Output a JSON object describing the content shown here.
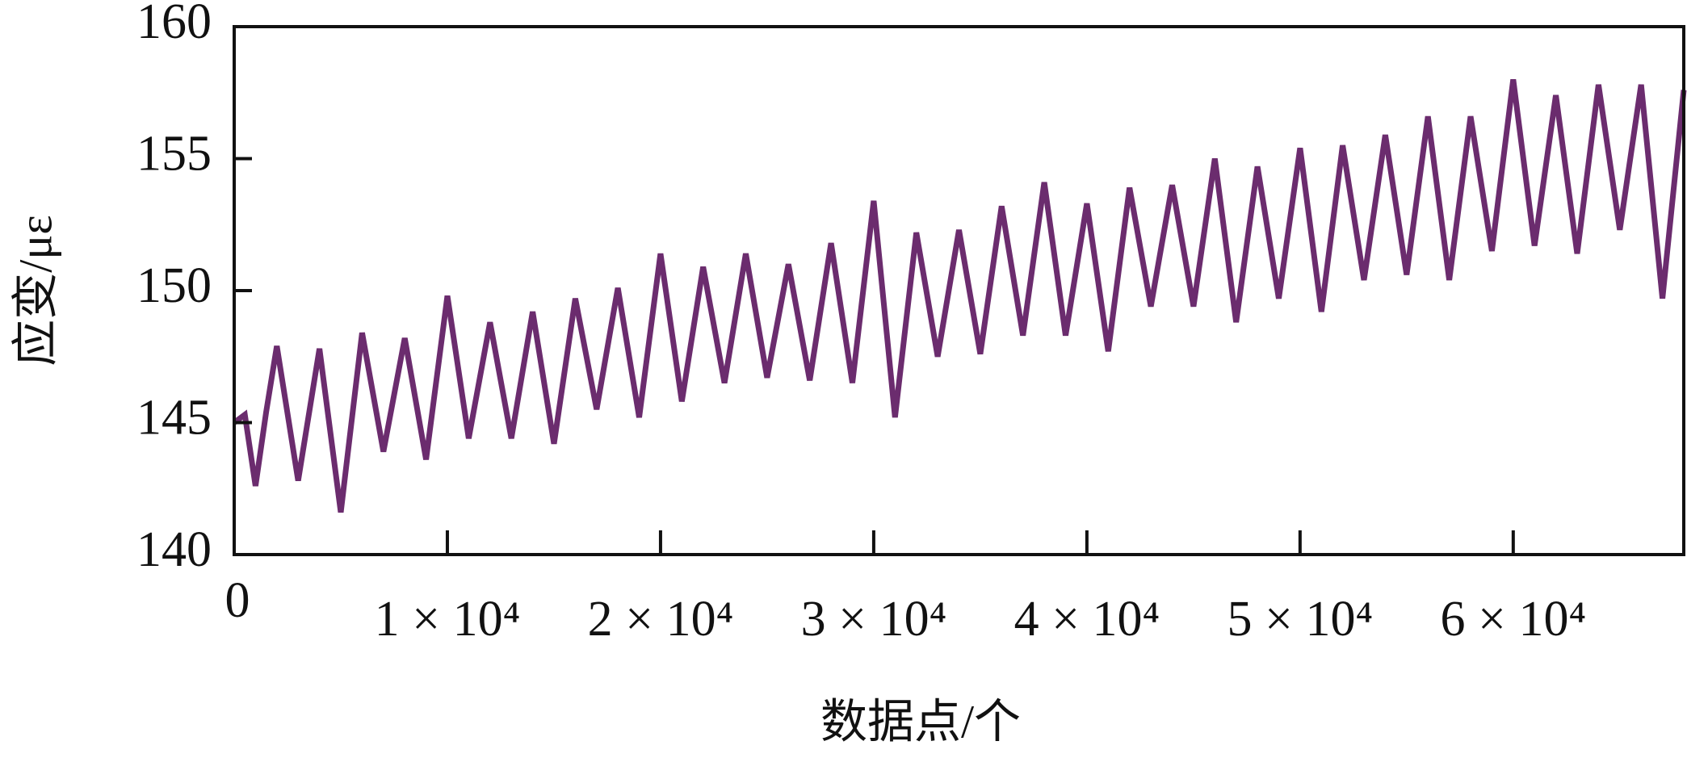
{
  "chart_data": {
    "type": "line",
    "x_label": "数据点/个",
    "y_label": "应变/με",
    "xlim": [
      0,
      68000
    ],
    "ylim": [
      140,
      160
    ],
    "xticks": [
      0,
      {
        "value": 10000,
        "label": "1 × 10⁴"
      },
      {
        "value": 20000,
        "label": "2 × 10⁴"
      },
      {
        "value": 30000,
        "label": "3 × 10⁴"
      },
      {
        "value": 40000,
        "label": "4 × 10⁴"
      },
      {
        "value": 50000,
        "label": "5 × 10⁴"
      },
      {
        "value": 60000,
        "label": "6 × 10⁴"
      }
    ],
    "yticks": [
      140,
      145,
      150,
      155,
      160
    ],
    "x": [
      0,
      500,
      1000,
      1500,
      2000,
      3000,
      4000,
      5000,
      6000,
      7000,
      8000,
      9000,
      10000,
      11000,
      12000,
      13000,
      14000,
      15000,
      16000,
      17000,
      18000,
      19000,
      20000,
      21000,
      22000,
      23000,
      24000,
      25000,
      26000,
      27000,
      28000,
      29000,
      30000,
      31000,
      32000,
      33000,
      34000,
      35000,
      36000,
      37000,
      38000,
      39000,
      40000,
      41000,
      42000,
      43000,
      44000,
      45000,
      46000,
      47000,
      48000,
      49000,
      50000,
      51000,
      52000,
      53000,
      54000,
      55000,
      56000,
      57000,
      58000,
      59000,
      60000,
      61000,
      62000,
      63000,
      64000,
      65000,
      66000,
      67000,
      68000
    ],
    "series": [
      {
        "color": "#6b2c6e",
        "values": [
          145.0,
          145.3,
          142.6,
          145.4,
          147.9,
          142.8,
          147.8,
          141.6,
          148.4,
          143.9,
          148.2,
          143.6,
          149.8,
          144.4,
          148.8,
          144.4,
          149.2,
          144.2,
          149.7,
          145.5,
          150.1,
          145.2,
          151.4,
          145.8,
          150.9,
          146.5,
          151.4,
          146.7,
          151.0,
          146.6,
          151.8,
          146.5,
          153.4,
          145.2,
          152.2,
          147.5,
          152.3,
          147.6,
          153.2,
          148.3,
          154.1,
          148.3,
          153.3,
          147.7,
          153.9,
          149.4,
          154.0,
          149.4,
          155.0,
          148.8,
          154.7,
          149.7,
          155.4,
          149.2,
          155.5,
          150.4,
          155.9,
          150.6,
          156.6,
          150.4,
          156.6,
          151.5,
          158.0,
          151.7,
          157.4,
          151.4,
          157.8,
          152.3,
          157.8,
          149.7,
          157.6
        ]
      }
    ]
  }
}
